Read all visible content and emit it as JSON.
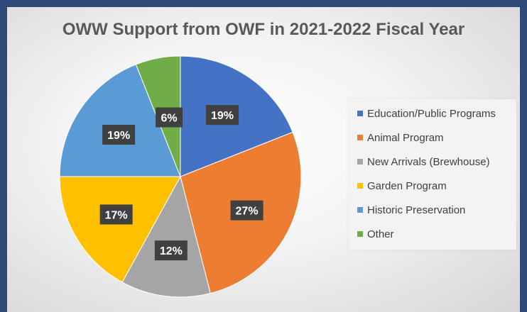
{
  "chart_data": {
    "type": "pie",
    "title": "OWW Support from OWF in 2021-2022 Fiscal Year",
    "series": [
      {
        "name": "Education/Public Programs",
        "value": 19,
        "label": "19%",
        "color": "#4472c4"
      },
      {
        "name": "Animal Program",
        "value": 27,
        "label": "27%",
        "color": "#ed7d31"
      },
      {
        "name": "New Arrivals (Brewhouse)",
        "value": 12,
        "label": "12%",
        "color": "#a5a5a5"
      },
      {
        "name": "Garden Program",
        "value": 17,
        "label": "17%",
        "color": "#ffc000"
      },
      {
        "name": "Historic Preservation",
        "value": 19,
        "label": "19%",
        "color": "#5b9bd5"
      },
      {
        "name": "Other",
        "value": 6,
        "label": "6%",
        "color": "#70ad47"
      }
    ],
    "legend_position": "right"
  }
}
